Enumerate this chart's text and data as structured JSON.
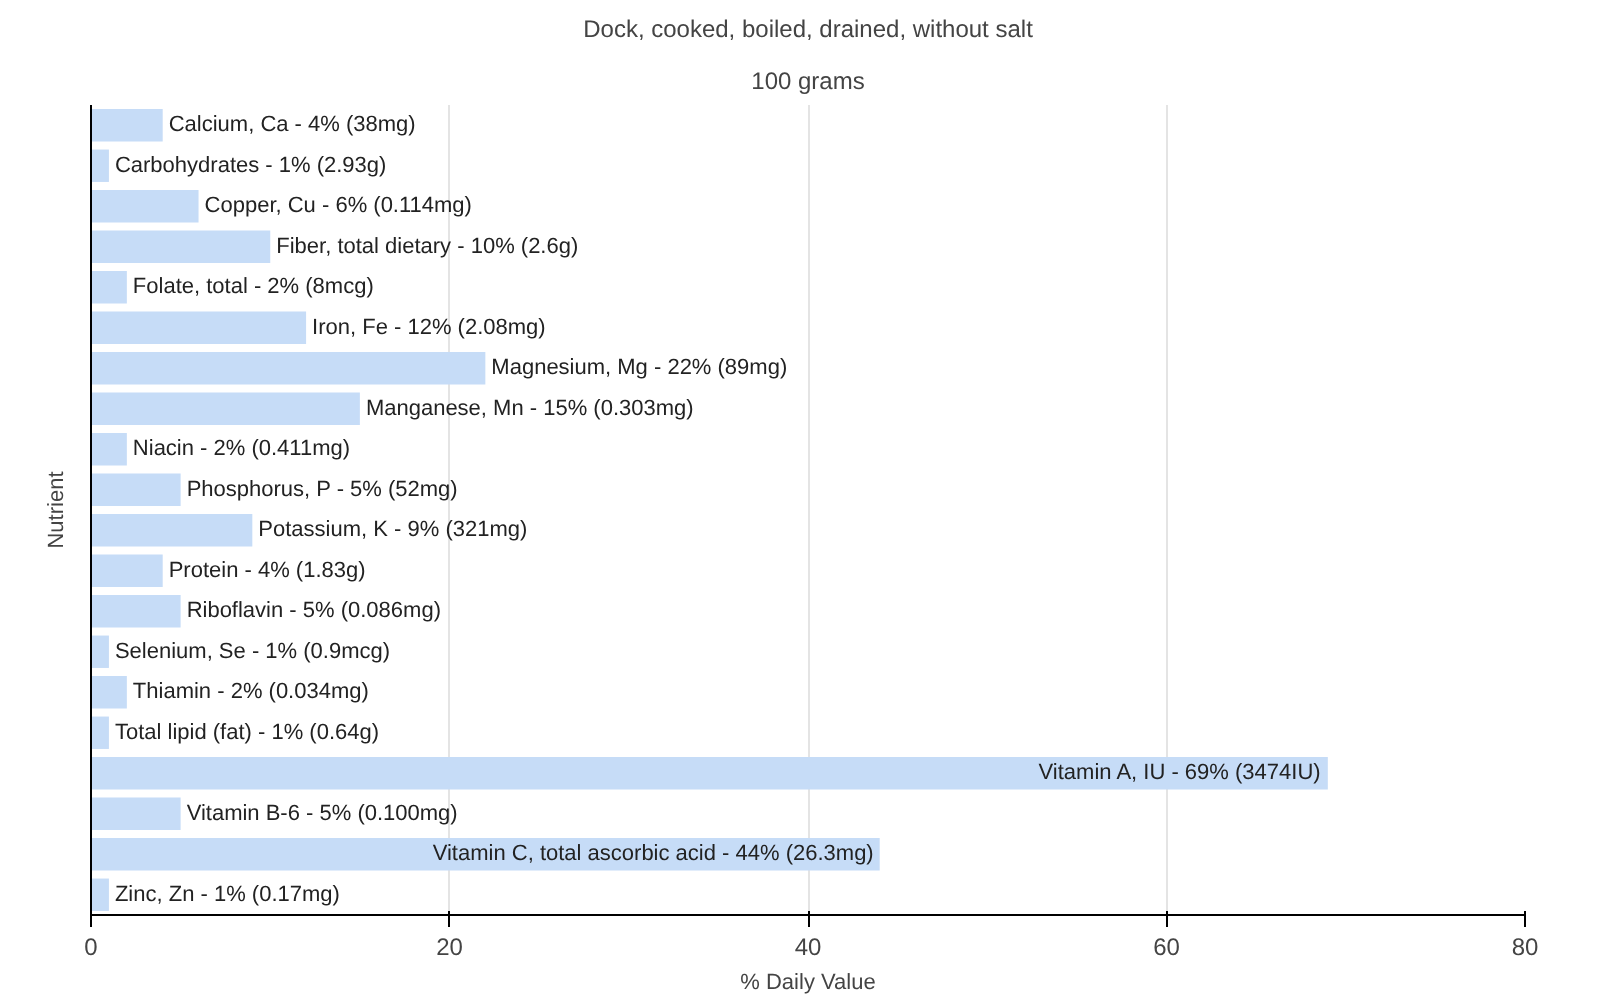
{
  "chart_data": {
    "type": "bar",
    "orientation": "horizontal",
    "title": "Dock, cooked, boiled, drained, without salt",
    "subtitle": "100 grams",
    "xlabel": "% Daily Value",
    "ylabel": "Nutrient",
    "categories": [
      "Calcium, Ca -",
      "Carbohydrates -",
      "Copper, Cu -",
      "Fiber, total dietary -",
      "Folate, total -",
      "Iron, Fe -",
      "Magnesium, Mg -",
      "Manganese, Mn -",
      "Niacin -",
      "Phosphorus, P -",
      "Potassium, K -",
      "Protein -",
      "Riboflavin -",
      "Selenium, Se -",
      "Thiamin -",
      "Total lipid (fat) -",
      "Vitamin A, IU -",
      "Vitamin B-6 -",
      "Vitamin C, total ascorbic acid -",
      "Zinc, Zn -"
    ],
    "values": [
      4,
      1,
      6,
      10,
      2,
      12,
      22,
      15,
      2,
      5,
      9,
      4,
      5,
      1,
      2,
      1,
      69,
      5,
      44,
      1
    ],
    "value_labels": [
      "4% (38mg)",
      "1% (2.93g)",
      "6% (0.114mg)",
      "10% (2.6g)",
      "2% (8mcg)",
      "12% (2.08mg)",
      "22% (89mg)",
      "15% (0.303mg)",
      "2% (0.411mg)",
      "5% (52mg)",
      "9% (321mg)",
      "4% (1.83g)",
      "5% (0.086mg)",
      "1% (0.9mcg)",
      "2% (0.034mg)",
      "1% (0.64g)",
      "69% (3474IU)",
      "5% (0.100mg)",
      "44% (26.3mg)",
      "1% (0.17mg)"
    ],
    "color": "#c6dcf7",
    "xlim": [
      0,
      80
    ],
    "xticks": [
      0,
      20,
      40,
      60,
      80
    ],
    "grid": "x"
  }
}
